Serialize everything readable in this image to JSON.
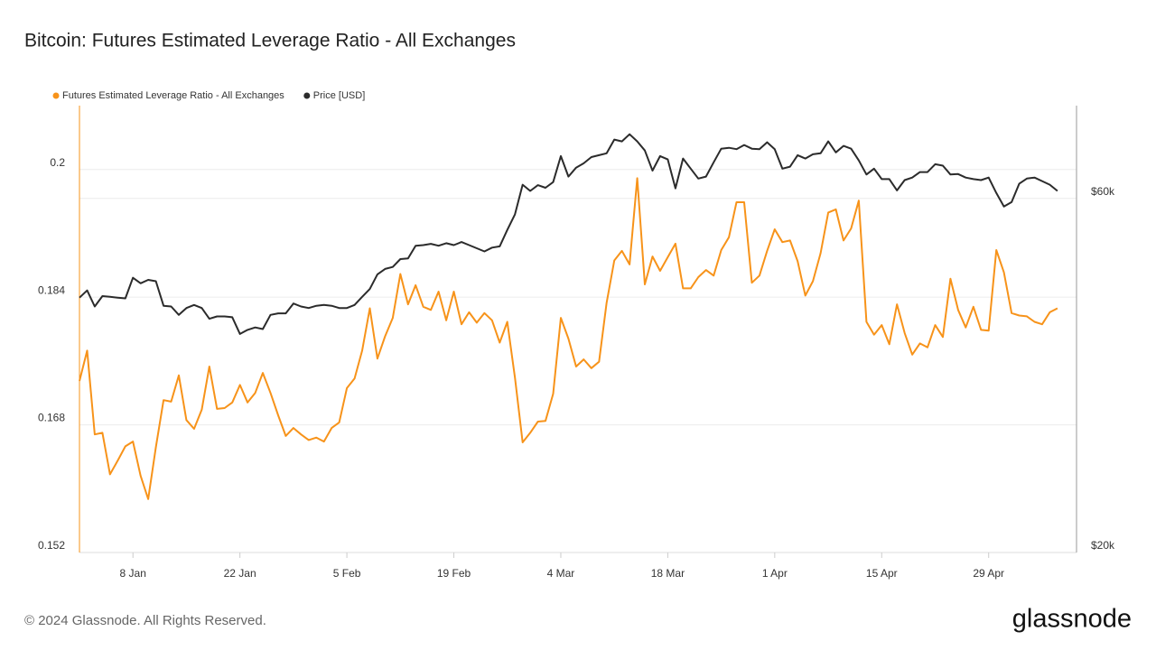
{
  "chart_data": {
    "type": "line",
    "title": "Bitcoin: Futures Estimated Leverage Ratio - All Exchanges",
    "categories": [
      "1 Jan",
      "2 Jan",
      "3 Jan",
      "4 Jan",
      "5 Jan",
      "6 Jan",
      "7 Jan",
      "8 Jan",
      "9 Jan",
      "10 Jan",
      "11 Jan",
      "12 Jan",
      "13 Jan",
      "14 Jan",
      "15 Jan",
      "16 Jan",
      "17 Jan",
      "18 Jan",
      "19 Jan",
      "20 Jan",
      "21 Jan",
      "22 Jan",
      "23 Jan",
      "24 Jan",
      "25 Jan",
      "26 Jan",
      "27 Jan",
      "28 Jan",
      "29 Jan",
      "30 Jan",
      "31 Jan",
      "1 Feb",
      "2 Feb",
      "3 Feb",
      "4 Feb",
      "5 Feb",
      "6 Feb",
      "7 Feb",
      "8 Feb",
      "9 Feb",
      "10 Feb",
      "11 Feb",
      "12 Feb",
      "13 Feb",
      "14 Feb",
      "15 Feb",
      "16 Feb",
      "17 Feb",
      "18 Feb",
      "19 Feb",
      "20 Feb",
      "21 Feb",
      "22 Feb",
      "23 Feb",
      "24 Feb",
      "25 Feb",
      "26 Feb",
      "27 Feb",
      "28 Feb",
      "29 Feb",
      "1 Mar",
      "2 Mar",
      "3 Mar",
      "4 Mar",
      "5 Mar",
      "6 Mar",
      "7 Mar",
      "8 Mar",
      "9 Mar",
      "10 Mar",
      "11 Mar",
      "12 Mar",
      "13 Mar",
      "14 Mar",
      "15 Mar",
      "16 Mar",
      "17 Mar",
      "18 Mar",
      "19 Mar",
      "20 Mar",
      "21 Mar",
      "22 Mar",
      "23 Mar",
      "24 Mar",
      "25 Mar",
      "26 Mar",
      "27 Mar",
      "28 Mar",
      "29 Mar",
      "30 Mar",
      "31 Mar",
      "1 Apr",
      "2 Apr",
      "3 Apr",
      "4 Apr",
      "5 Apr",
      "6 Apr",
      "7 Apr",
      "8 Apr",
      "9 Apr",
      "10 Apr",
      "11 Apr",
      "12 Apr",
      "13 Apr",
      "14 Apr",
      "15 Apr",
      "16 Apr",
      "17 Apr",
      "18 Apr",
      "19 Apr",
      "20 Apr",
      "21 Apr",
      "22 Apr",
      "23 Apr",
      "24 Apr",
      "25 Apr",
      "26 Apr",
      "27 Apr",
      "28 Apr",
      "29 Apr",
      "30 Apr",
      "1 May",
      "2 May",
      "3 May",
      "4 May",
      "5 May",
      "6 May",
      "7 May",
      "8 May"
    ],
    "xticks": [
      "8 Jan",
      "22 Jan",
      "5 Feb",
      "19 Feb",
      "4 Mar",
      "18 Mar",
      "1 Apr",
      "15 Apr",
      "29 Apr"
    ],
    "ylim": [
      0.152,
      0.208
    ],
    "yticks": [
      0.152,
      0.168,
      0.184,
      0.2
    ],
    "y2lim": [
      20000,
      80000
    ],
    "y2log": true,
    "y2ticks": [
      {
        "value": 20000,
        "label": "$20k"
      },
      {
        "value": 60000,
        "label": "$60k"
      }
    ],
    "grid": true,
    "legend": "top-left",
    "series": [
      {
        "name": "Futures Estimated Leverage Ratio - All Exchanges",
        "color": "#f7931a",
        "axis": "y",
        "values": [
          0.1735,
          0.1773,
          0.1668,
          0.167,
          0.1618,
          0.1635,
          0.1653,
          0.1659,
          0.1616,
          0.1587,
          0.1652,
          0.1711,
          0.1709,
          0.1742,
          0.1686,
          0.1675,
          0.1699,
          0.1753,
          0.17,
          0.1701,
          0.1708,
          0.173,
          0.1708,
          0.172,
          0.1745,
          0.172,
          0.1692,
          0.1666,
          0.1676,
          0.1668,
          0.1661,
          0.1664,
          0.1659,
          0.1676,
          0.1683,
          0.1726,
          0.1738,
          0.1773,
          0.1826,
          0.1763,
          0.1791,
          0.1814,
          0.1869,
          0.1831,
          0.1855,
          0.1828,
          0.1824,
          0.1847,
          0.1811,
          0.1847,
          0.1806,
          0.1821,
          0.1808,
          0.182,
          0.1811,
          0.1783,
          0.1809,
          0.1739,
          0.1658,
          0.167,
          0.1684,
          0.1685,
          0.1719,
          0.1814,
          0.1788,
          0.1753,
          0.1762,
          0.1751,
          0.1759,
          0.1833,
          0.1886,
          0.1898,
          0.1881,
          0.1989,
          0.1856,
          0.1891,
          0.1873,
          0.189,
          0.1907,
          0.1851,
          0.1851,
          0.1865,
          0.1874,
          0.1867,
          0.1899,
          0.1915,
          0.1959,
          0.1959,
          0.1858,
          0.1867,
          0.1898,
          0.1925,
          0.1909,
          0.1911,
          0.1885,
          0.1842,
          0.186,
          0.1895,
          0.1946,
          0.195,
          0.1911,
          0.1926,
          0.1961,
          0.1809,
          0.1793,
          0.1805,
          0.1781,
          0.1831,
          0.1795,
          0.1768,
          0.1782,
          0.1777,
          0.1805,
          0.179,
          0.1863,
          0.1824,
          0.1802,
          0.1828,
          0.1799,
          0.1798,
          0.1899,
          0.1871,
          0.182,
          0.1817,
          0.1816,
          0.1809,
          0.1806,
          0.1821,
          0.1826
        ]
      },
      {
        "name": "Price [USD]",
        "color": "#2b2b2b",
        "axis": "y2",
        "values": [
          44100,
          45100,
          42900,
          44300,
          44200,
          44100,
          44000,
          46900,
          46100,
          46600,
          46400,
          43000,
          42900,
          41800,
          42700,
          43100,
          42700,
          41300,
          41600,
          41600,
          41500,
          39400,
          39900,
          40200,
          40000,
          41800,
          42000,
          42000,
          43300,
          42900,
          42700,
          43000,
          43100,
          43000,
          42700,
          42700,
          43100,
          44200,
          45300,
          47400,
          48200,
          48500,
          49700,
          49800,
          51800,
          51900,
          52100,
          51800,
          52200,
          51900,
          52400,
          51900,
          51400,
          50900,
          51500,
          51700,
          54400,
          57100,
          62600,
          61400,
          62500,
          62000,
          63100,
          68400,
          64200,
          66000,
          66900,
          68200,
          68600,
          69000,
          72000,
          71600,
          73200,
          71600,
          69600,
          65400,
          68400,
          67700,
          61900,
          67900,
          65800,
          63800,
          64200,
          67100,
          70000,
          70200,
          69900,
          70800,
          70000,
          69900,
          71400,
          69900,
          65800,
          66200,
          68600,
          67900,
          68800,
          69000,
          71600,
          69200,
          70600,
          70000,
          67500,
          64600,
          65800,
          63700,
          63700,
          61500,
          63500,
          64000,
          65100,
          65100,
          66700,
          66400,
          64600,
          64700,
          64000,
          63700,
          63500,
          64000,
          61000,
          58500,
          59300,
          62800,
          63800,
          64000,
          63300,
          62600,
          61400
        ]
      }
    ]
  },
  "footer": "© 2024 Glassnode. All Rights Reserved.",
  "brand": "glassnode"
}
